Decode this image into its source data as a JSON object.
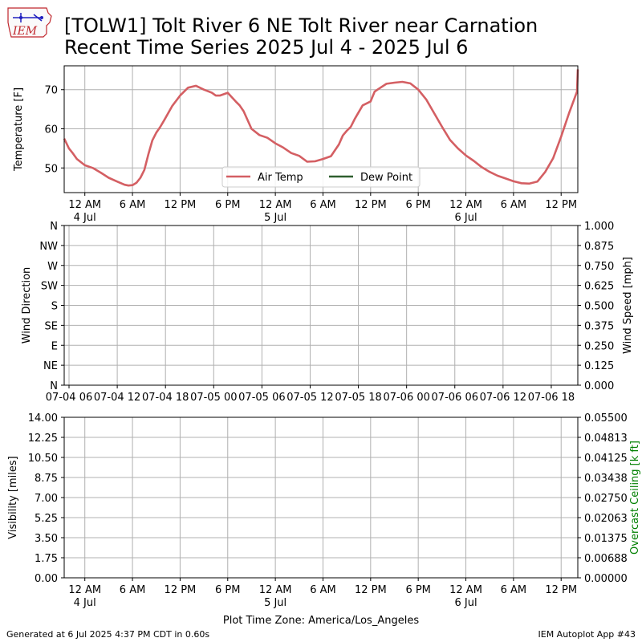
{
  "header": {
    "title_line1": "[TOLW1] Tolt River 6 NE Tolt River near Carnation",
    "title_line2": "Recent Time Series 2025 Jul 4 - 2025 Jul 6",
    "logo_text": "IEM"
  },
  "footer": {
    "generated": "Generated at 6 Jul 2025 4:37 PM CDT in 0.60s",
    "app": "IEM Autoplot App #43"
  },
  "colors": {
    "air_temp": "#d45f63",
    "dew_point": "#2f5f2f",
    "grid": "#b0b0b0",
    "ceiling_label": "#008000",
    "logo": "#c0262c"
  },
  "chart_data": [
    {
      "type": "line",
      "panel": "temperature",
      "ylabel": "Temperature [F]",
      "ylim": [
        43.7,
        76.1
      ],
      "yticks": [
        50,
        60,
        70
      ],
      "xlim_hours": [
        -2.6,
        62.1
      ],
      "x_ticks_hours": [
        0,
        6,
        12,
        18,
        24,
        30,
        36,
        42,
        48,
        54,
        60
      ],
      "x_tick_labels": [
        [
          "12 AM",
          "4 Jul"
        ],
        [
          "6 AM",
          ""
        ],
        [
          "12 PM",
          ""
        ],
        [
          "6 PM",
          ""
        ],
        [
          "12 AM",
          "5 Jul"
        ],
        [
          "6 AM",
          ""
        ],
        [
          "12 PM",
          ""
        ],
        [
          "6 PM",
          ""
        ],
        [
          "12 AM",
          "6 Jul"
        ],
        [
          "6 AM",
          ""
        ],
        [
          "12 PM",
          ""
        ]
      ],
      "grid": true,
      "legend_placement": "lower-center",
      "series": [
        {
          "name": "Air Temp",
          "x_hours": [
            -2.6,
            -2,
            -1.5,
            -1,
            0,
            1,
            2,
            3,
            4,
            5,
            5.5,
            6,
            6.5,
            7,
            7.5,
            8,
            8.5,
            9,
            9.5,
            10,
            11,
            12,
            13,
            14,
            15,
            16,
            16.5,
            17,
            18,
            19,
            19.5,
            20,
            21,
            22,
            23,
            24,
            25,
            26,
            27,
            28,
            29,
            30,
            31,
            32,
            32.5,
            33,
            33.5,
            34,
            35,
            36,
            36.5,
            37,
            38,
            39,
            40,
            41,
            42,
            43,
            44,
            45,
            46,
            47,
            48,
            49,
            50,
            51,
            52,
            53,
            54,
            55,
            56,
            57,
            58,
            59,
            60,
            61,
            62,
            62.1
          ],
          "values": [
            57.5,
            55,
            53.7,
            52.3,
            50.7,
            50,
            48.8,
            47.5,
            46.6,
            45.7,
            45.5,
            45.6,
            46.2,
            47.5,
            49.5,
            53.5,
            57,
            59,
            60.5,
            62.2,
            65.8,
            68.5,
            70.5,
            71,
            70,
            69.2,
            68.5,
            68.5,
            69.2,
            67,
            66,
            64.5,
            60,
            58.4,
            57.7,
            56.3,
            55.2,
            53.8,
            53.1,
            51.6,
            51.7,
            52.3,
            53,
            56,
            58.3,
            59.5,
            60.5,
            62.5,
            66,
            67,
            69.5,
            70.2,
            71.5,
            71.8,
            72,
            71.6,
            70,
            67.5,
            64,
            60.5,
            57.2,
            55,
            53.2,
            51.8,
            50.2,
            49,
            48,
            47.3,
            46.6,
            46.1,
            46,
            46.5,
            49,
            52.5,
            58,
            64,
            69.5,
            75.2
          ],
          "color": "#d45f63"
        },
        {
          "name": "Dew Point",
          "values": [],
          "color": "#2f5f2f"
        }
      ]
    },
    {
      "type": "line",
      "panel": "wind",
      "ylabel": "Wind Direction",
      "ylabel_right": "Wind Speed [mph]",
      "y_left_ticks": [
        "N",
        "NE",
        "E",
        "SE",
        "S",
        "SW",
        "W",
        "NW",
        "N"
      ],
      "y_right_ticks": [
        "0.000",
        "0.125",
        "0.250",
        "0.375",
        "0.500",
        "0.625",
        "0.750",
        "0.875",
        "1.000"
      ],
      "ylim_right": [
        0,
        1
      ],
      "x_tick_labels": [
        "07-04 06",
        "07-04 12",
        "07-04 18",
        "07-05 00",
        "07-05 06",
        "07-05 12",
        "07-05 18",
        "07-06 00",
        "07-06 06",
        "07-06 12",
        "07-06 18"
      ],
      "x_ticks_hours": [
        6,
        12,
        18,
        24,
        30,
        36,
        42,
        48,
        54,
        60,
        66
      ],
      "xlim_hours": [
        5.4,
        69.3
      ],
      "grid": true,
      "series": []
    },
    {
      "type": "line",
      "panel": "visibility",
      "ylabel": "Visibility [miles]",
      "ylabel_right": "Overcast Ceiling [k ft]",
      "y_left_ticks": [
        "0.00",
        "1.75",
        "3.50",
        "5.25",
        "7.00",
        "8.75",
        "10.50",
        "12.25",
        "14.00"
      ],
      "y_right_ticks": [
        "0.00000",
        "0.00688",
        "0.01375",
        "0.02063",
        "0.02750",
        "0.03438",
        "0.04125",
        "0.04813",
        "0.05500"
      ],
      "ylim": [
        0,
        14
      ],
      "ylim_right": [
        0,
        0.055
      ],
      "xlabel": "Plot Time Zone: America/Los_Angeles",
      "xlim_hours": [
        -2.6,
        62.1
      ],
      "x_ticks_hours": [
        0,
        6,
        12,
        18,
        24,
        30,
        36,
        42,
        48,
        54,
        60
      ],
      "x_tick_labels": [
        [
          "12 AM",
          "4 Jul"
        ],
        [
          "6 AM",
          ""
        ],
        [
          "12 PM",
          ""
        ],
        [
          "6 PM",
          ""
        ],
        [
          "12 AM",
          "5 Jul"
        ],
        [
          "6 AM",
          ""
        ],
        [
          "12 PM",
          ""
        ],
        [
          "6 PM",
          ""
        ],
        [
          "12 AM",
          "6 Jul"
        ],
        [
          "6 AM",
          ""
        ],
        [
          "12 PM",
          ""
        ]
      ],
      "grid": true,
      "series": []
    }
  ]
}
